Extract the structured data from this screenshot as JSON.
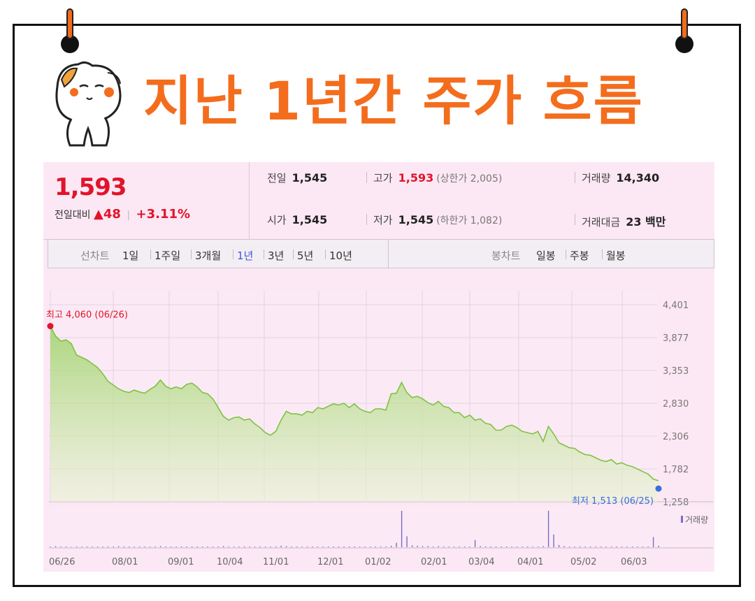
{
  "page": {
    "title": "지난 1년간 주가 흐름"
  },
  "colors": {
    "accent": "#f36d1d",
    "up": "#e0142b",
    "line": "#7fc242",
    "low": "#3a6fd8",
    "volume": "#7a6bc7"
  },
  "icons": {
    "mascot": "cat-mascot-icon"
  },
  "quote": {
    "price": "1,593",
    "change_label": "전일대비",
    "change_arrow": "▲",
    "change_value": "48",
    "change_pct": "+3.11%"
  },
  "stats": {
    "prev_label": "전일",
    "prev_value": "1,545",
    "open_label": "시가",
    "open_value": "1,545",
    "high_label": "고가",
    "high_value": "1,593",
    "upper_limit": "(상한가 2,005)",
    "low_label": "저가",
    "low_value": "1,545",
    "lower_limit": "(하한가 1,082)",
    "volume_label": "거래량",
    "volume_value": "14,340",
    "amount_label": "거래대금",
    "amount_value": "23 백만"
  },
  "tabs": {
    "line_label": "선차트",
    "line_items": [
      "1일",
      "1주일",
      "3개월",
      "1년",
      "3년",
      "5년",
      "10년"
    ],
    "line_active": "1년",
    "candle_label": "봉차트",
    "candle_items": [
      "일봉",
      "주봉",
      "월봉"
    ]
  },
  "chart_data": {
    "type": "area",
    "y_ticks": [
      "4,401",
      "3,877",
      "3,353",
      "2,830",
      "2,306",
      "1,782",
      "1,258"
    ],
    "ylim": [
      1258,
      4401
    ],
    "x_ticks": [
      "06/26",
      "08/01",
      "09/01",
      "10/04",
      "11/01",
      "12/01",
      "01/02",
      "02/01",
      "03/04",
      "04/01",
      "05/02",
      "06/03"
    ],
    "high_annotation": "최고 4,060 (06/26)",
    "low_annotation": "최저 1,513 (06/25)",
    "volume_legend": "거래량",
    "series": [
      {
        "values": [
          4060,
          3900,
          3820,
          3840,
          3780,
          3600,
          3560,
          3520,
          3460,
          3400,
          3300,
          3180,
          3120,
          3060,
          3020,
          3000,
          3040,
          3010,
          2990,
          3050,
          3100,
          3200,
          3100,
          3060,
          3090,
          3060,
          3130,
          3150,
          3090,
          3000,
          2980,
          2900,
          2760,
          2620,
          2560,
          2600,
          2610,
          2560,
          2580,
          2500,
          2440,
          2360,
          2320,
          2380,
          2560,
          2700,
          2660,
          2660,
          2640,
          2700,
          2680,
          2760,
          2740,
          2780,
          2820,
          2800,
          2830,
          2760,
          2820,
          2740,
          2700,
          2680,
          2740,
          2740,
          2720,
          2980,
          2990,
          3160,
          3000,
          2920,
          2940,
          2900,
          2840,
          2800,
          2860,
          2780,
          2760,
          2680,
          2680,
          2600,
          2640,
          2560,
          2580,
          2510,
          2490,
          2400,
          2400,
          2460,
          2480,
          2440,
          2380,
          2360,
          2340,
          2380,
          2220,
          2460,
          2340,
          2200,
          2160,
          2120,
          2110,
          2050,
          2010,
          2000,
          1960,
          1920,
          1900,
          1930,
          1860,
          1880,
          1840,
          1820,
          1780,
          1740,
          1700,
          1620,
          1593
        ],
        "volume": [
          0.02,
          0.03,
          0.02,
          0.02,
          0.01,
          0.02,
          0.02,
          0.02,
          0.02,
          0.02,
          0.02,
          0.02,
          0.02,
          0.03,
          0.02,
          0.02,
          0.02,
          0.02,
          0.02,
          0.02,
          0.02,
          0.03,
          0.02,
          0.02,
          0.02,
          0.02,
          0.02,
          0.02,
          0.02,
          0.02,
          0.02,
          0.02,
          0.02,
          0.03,
          0.02,
          0.02,
          0.02,
          0.02,
          0.02,
          0.02,
          0.02,
          0.02,
          0.02,
          0.02,
          0.04,
          0.03,
          0.02,
          0.02,
          0.02,
          0.02,
          0.02,
          0.02,
          0.02,
          0.02,
          0.02,
          0.02,
          0.02,
          0.02,
          0.02,
          0.02,
          0.02,
          0.02,
          0.02,
          0.02,
          0.02,
          0.04,
          0.12,
          1.0,
          0.3,
          0.05,
          0.04,
          0.03,
          0.03,
          0.02,
          0.03,
          0.02,
          0.02,
          0.02,
          0.02,
          0.02,
          0.02,
          0.2,
          0.03,
          0.02,
          0.02,
          0.02,
          0.02,
          0.02,
          0.02,
          0.02,
          0.02,
          0.02,
          0.02,
          0.02,
          0.03,
          1.0,
          0.35,
          0.06,
          0.03,
          0.02,
          0.02,
          0.02,
          0.02,
          0.02,
          0.02,
          0.02,
          0.02,
          0.02,
          0.02,
          0.02,
          0.02,
          0.02,
          0.02,
          0.02,
          0.02,
          0.28,
          0.04
        ]
      }
    ]
  }
}
